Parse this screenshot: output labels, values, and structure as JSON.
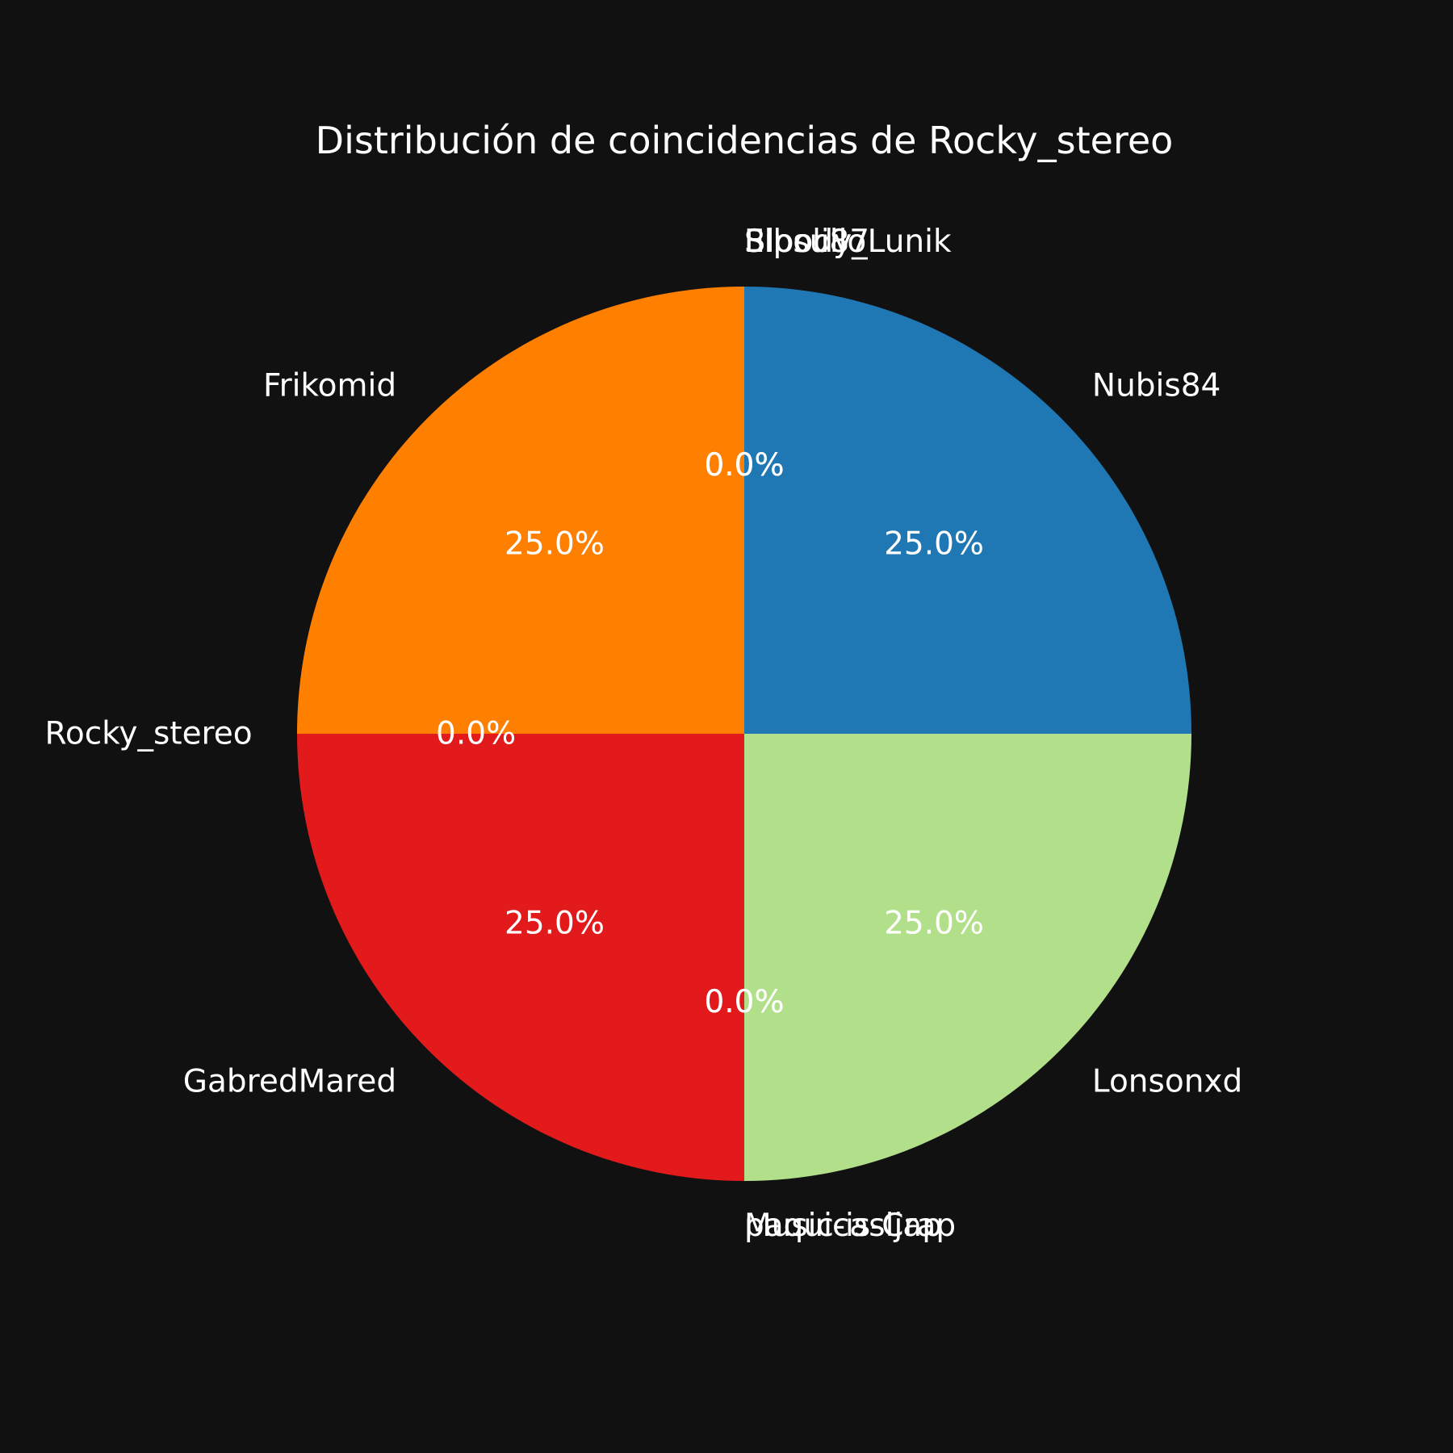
{
  "chart_data": {
    "type": "pie",
    "title": "Distribución de coincidencias de Rocky_stereo",
    "slices": [
      {
        "name": "Nubis84",
        "value": 25.0,
        "pct_label": "25.0%",
        "color": "#1f77b4"
      },
      {
        "name": "Elbolillo",
        "value": 0,
        "pct_label": "0.0%",
        "color": "#9ecae1"
      },
      {
        "name": "Sipsu87",
        "value": 0,
        "pct_label": "0.0%",
        "color": "#9ecae1"
      },
      {
        "name": "Bloody_Lunik",
        "value": 0,
        "pct_label": "0.0%",
        "color": "#9ecae1"
      },
      {
        "name": "Frikomid",
        "value": 25.0,
        "pct_label": "25.0%",
        "color": "#ff7f00"
      },
      {
        "name": "Rocky_stereo",
        "value": 0,
        "pct_label": "0.0%",
        "color": "#fdbf6f"
      },
      {
        "name": "GabredMared",
        "value": 25.0,
        "pct_label": "25.0%",
        "color": "#e31a1c"
      },
      {
        "name": "Music-is-Crap",
        "value": 0,
        "pct_label": "0.0%",
        "color": "#fb9a99"
      },
      {
        "name": "paquicasljap",
        "value": 0,
        "pct_label": "0.0%",
        "color": "#fb9a99"
      },
      {
        "name": "Lonsonxd",
        "value": 25.0,
        "pct_label": "25.0%",
        "color": "#b2df8a"
      }
    ]
  }
}
